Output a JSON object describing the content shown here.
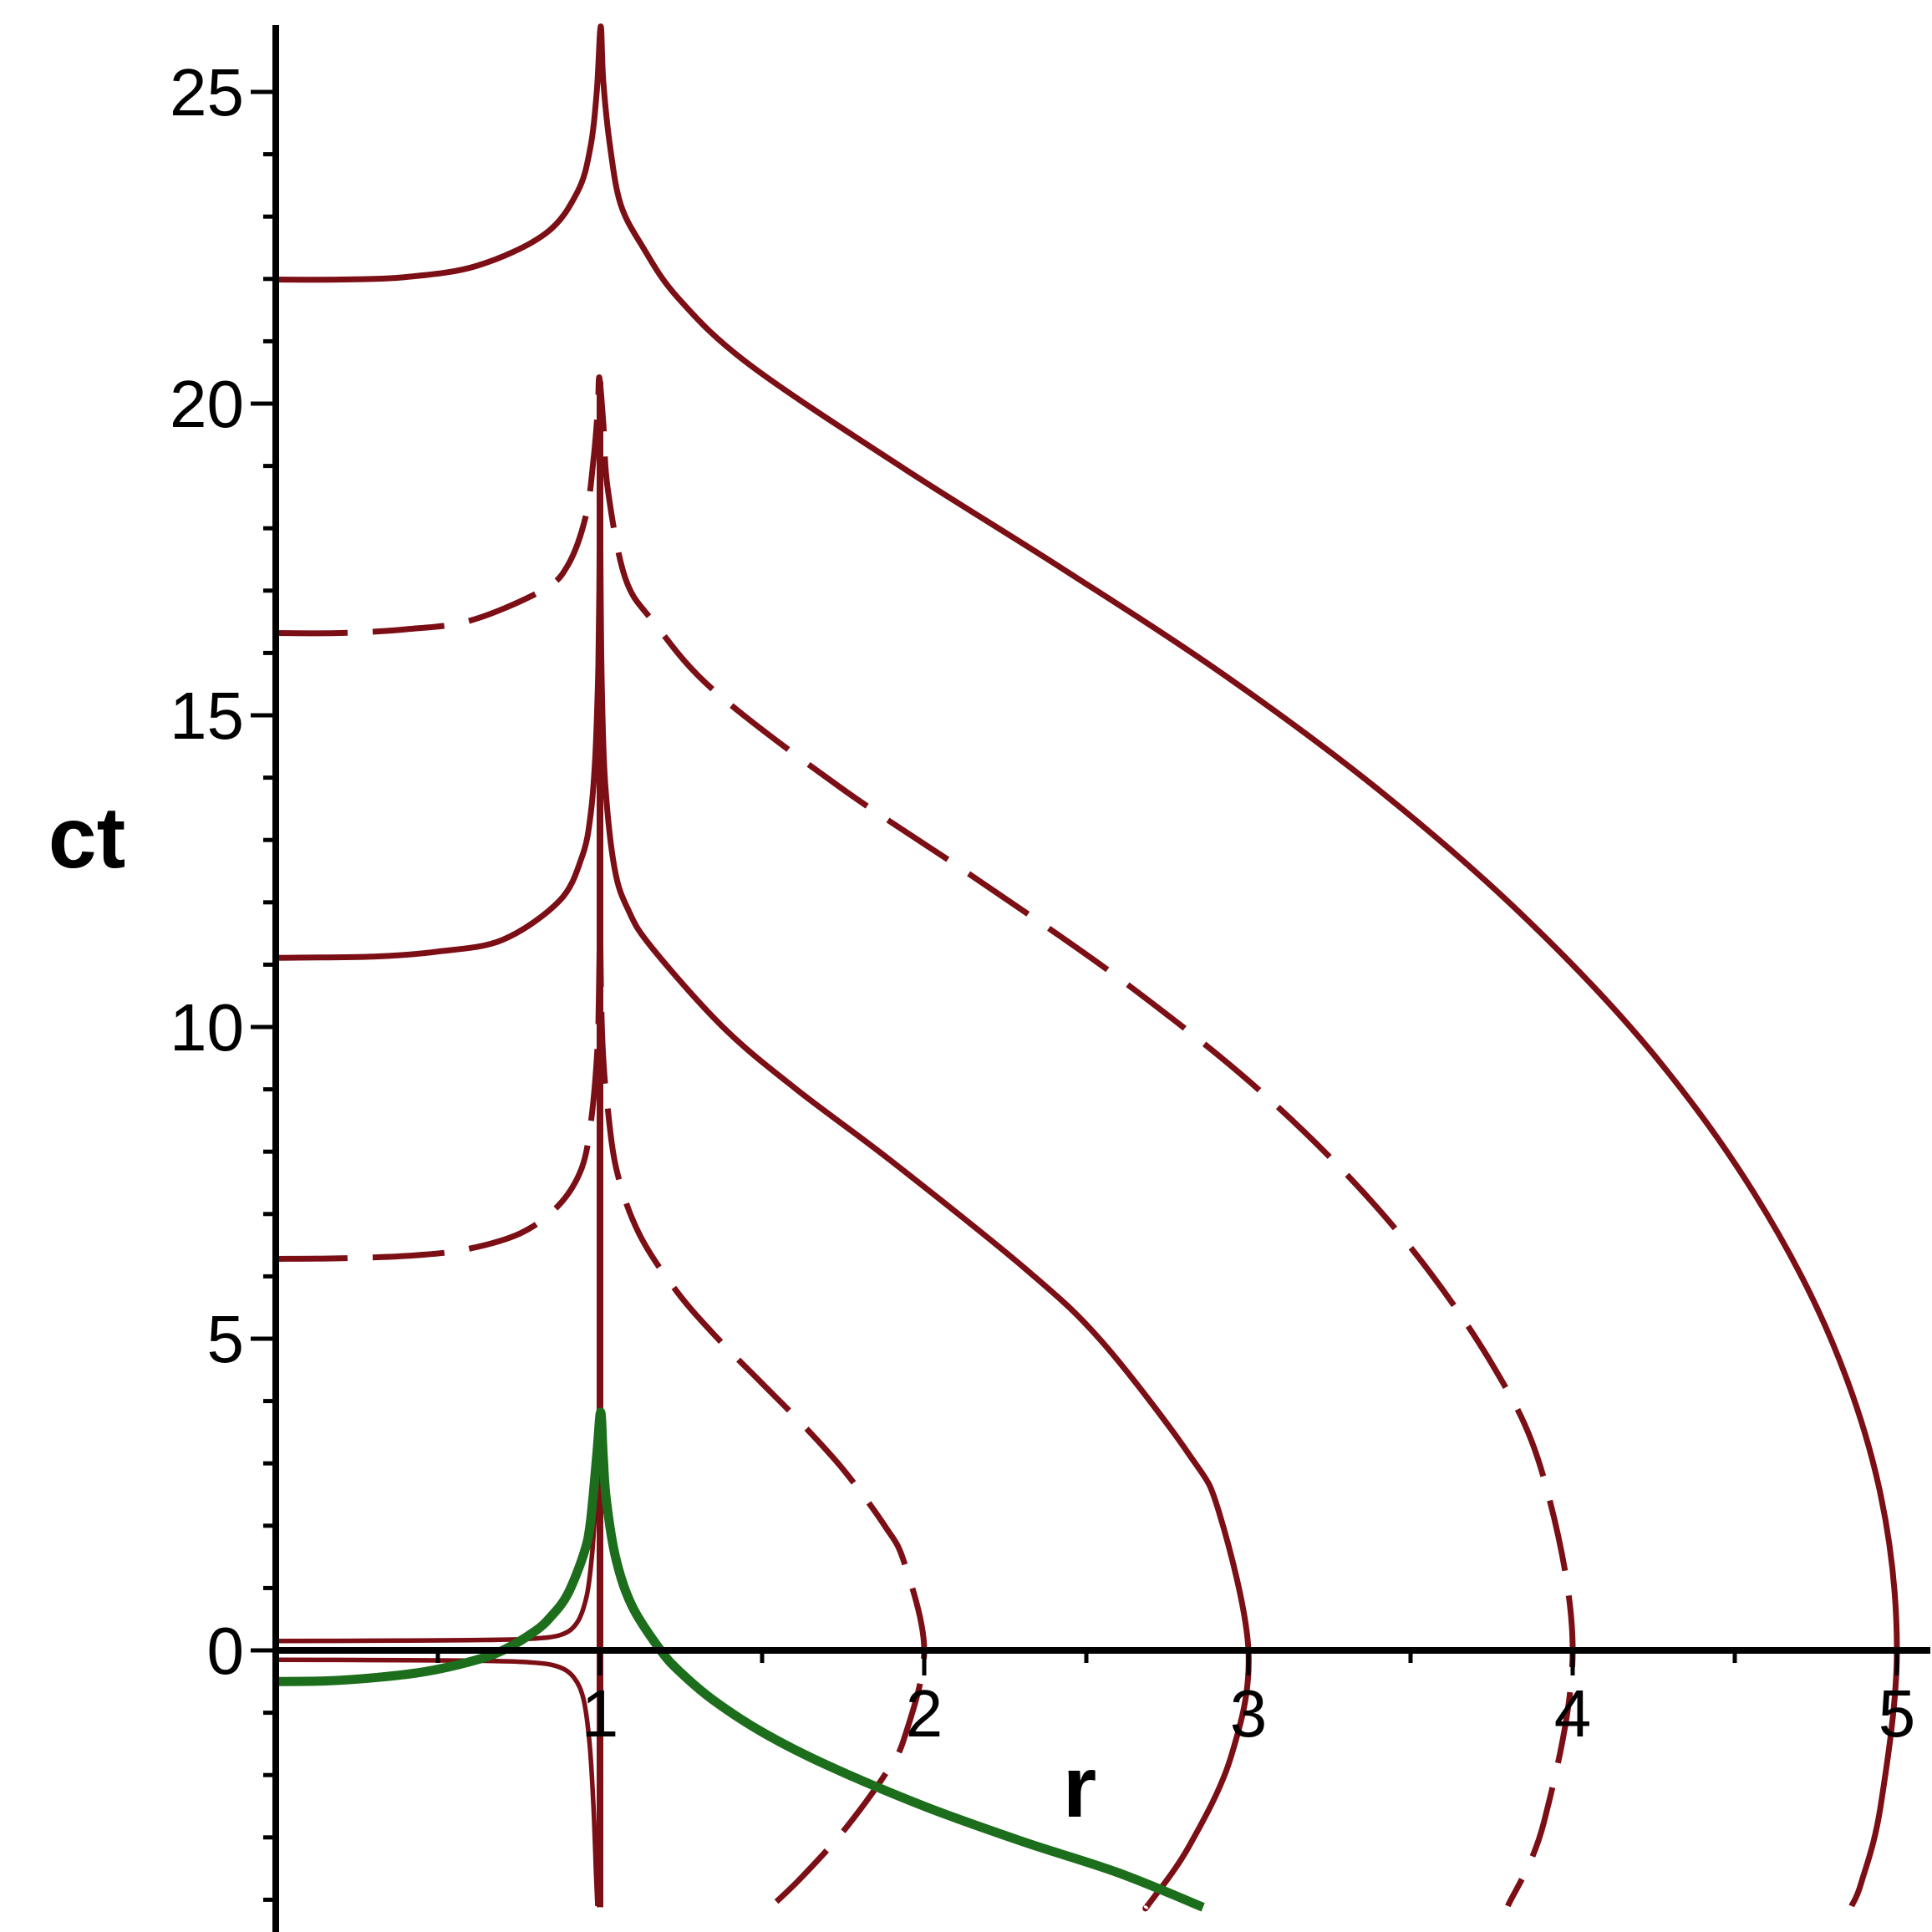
{
  "figure": {
    "background": "#ffffff"
  },
  "chart_data": {
    "type": "line",
    "xlabel": "r",
    "ylabel": "ct",
    "x_range_view": [
      0,
      5.11
    ],
    "y_range_view": [
      -4.52,
      26.2
    ],
    "grid": false,
    "legend": "none",
    "axis_color": "#000000",
    "x_ticks": [
      {
        "v": 1,
        "label": "1"
      },
      {
        "v": 2,
        "label": "2"
      },
      {
        "v": 3,
        "label": "3"
      },
      {
        "v": 4,
        "label": "4"
      },
      {
        "v": 5,
        "label": "5"
      }
    ],
    "x_minor_ticks": [
      0.5,
      1.5,
      2.5,
      3.5,
      4.5
    ],
    "y_ticks": [
      {
        "v": 0,
        "label": "0"
      },
      {
        "v": 5,
        "label": "5"
      },
      {
        "v": 10,
        "label": "10"
      },
      {
        "v": 15,
        "label": "15"
      },
      {
        "v": 20,
        "label": "20"
      },
      {
        "v": 25,
        "label": "25"
      }
    ],
    "y_minor_ticks": [
      -4,
      -3,
      -2,
      -1,
      1,
      2,
      3,
      4,
      6,
      7,
      8,
      9,
      11,
      12,
      13,
      14,
      16,
      17,
      18,
      19,
      21,
      22,
      23,
      24
    ],
    "colors": {
      "particle": "#7C0E15",
      "photon": "#1C6E1C"
    },
    "dash_pattern": "86 30",
    "series": [
      {
        "name": "particle-infall-r0-5",
        "color": "#7C0E15",
        "dash": "solid",
        "width": 7,
        "points": [
          [
            0,
            21.99
          ],
          [
            0.2,
            21.99
          ],
          [
            0.4,
            22.03
          ],
          [
            0.62,
            22.21
          ],
          [
            0.83,
            22.72
          ],
          [
            0.93,
            23.39
          ],
          [
            0.97,
            24.1
          ],
          [
            0.99,
            25.0
          ],
          [
            1.002,
            26.05
          ],
          [
            1.01,
            25.18
          ],
          [
            1.03,
            24.17
          ],
          [
            1.063,
            23.21
          ],
          [
            1.13,
            22.53
          ],
          [
            1.24,
            21.7
          ],
          [
            1.46,
            20.63
          ],
          [
            1.94,
            18.95
          ],
          [
            2.43,
            17.34
          ],
          [
            2.93,
            15.63
          ],
          [
            3.41,
            13.77
          ],
          [
            3.85,
            11.77
          ],
          [
            4.24,
            9.62
          ],
          [
            4.56,
            7.33
          ],
          [
            4.8,
            4.95
          ],
          [
            4.95,
            2.49
          ],
          [
            5,
            0
          ],
          [
            4.95,
            -2.49
          ],
          [
            4.89,
            -3.73
          ],
          [
            4.86,
            -4.1
          ]
        ]
      },
      {
        "name": "particle-infall-r0-4",
        "color": "#7C0E15",
        "dash": "dashed",
        "width": 7,
        "points": [
          [
            0,
            16.32
          ],
          [
            0.2,
            16.32
          ],
          [
            0.4,
            16.38
          ],
          [
            0.6,
            16.52
          ],
          [
            0.82,
            17.0
          ],
          [
            0.9,
            17.4
          ],
          [
            0.956,
            18.19
          ],
          [
            0.98,
            19.1
          ],
          [
            0.993,
            19.9
          ],
          [
            0.998,
            20.42
          ],
          [
            1.01,
            19.7
          ],
          [
            1.024,
            18.63
          ],
          [
            1.078,
            17.2
          ],
          [
            1.168,
            16.48
          ],
          [
            1.353,
            15.39
          ],
          [
            1.742,
            13.84
          ],
          [
            2.14,
            12.45
          ],
          [
            2.63,
            10.67
          ],
          [
            3.08,
            8.77
          ],
          [
            3.46,
            6.72
          ],
          [
            3.755,
            4.56
          ],
          [
            3.911,
            2.76
          ],
          [
            4,
            0
          ],
          [
            3.911,
            -2.76
          ],
          [
            3.8,
            -4.1
          ]
        ]
      },
      {
        "name": "particle-infall-r0-3",
        "color": "#7C0E15",
        "dash": "solid",
        "width": 7,
        "points": [
          [
            0,
            11.11
          ],
          [
            0.3,
            11.13
          ],
          [
            0.5,
            11.21
          ],
          [
            0.7,
            11.4
          ],
          [
            0.876,
            12.03
          ],
          [
            0.945,
            12.74
          ],
          [
            0.971,
            13.4
          ],
          [
            0.985,
            14.3
          ],
          [
            0.994,
            15.6
          ],
          [
            0.998,
            17.0
          ],
          [
            0.9995,
            18.7
          ],
          [
            1.0,
            20.35
          ],
          [
            1.0005,
            18.7
          ],
          [
            1.002,
            17.0
          ],
          [
            1.006,
            15.4
          ],
          [
            1.016,
            13.91
          ],
          [
            1.045,
            12.54
          ],
          [
            1.087,
            11.88
          ],
          [
            1.159,
            11.28
          ],
          [
            1.381,
            9.99
          ],
          [
            1.606,
            9.0
          ],
          [
            1.901,
            7.84
          ],
          [
            2.31,
            6.13
          ],
          [
            2.545,
            4.97
          ],
          [
            2.816,
            3.15
          ],
          [
            2.909,
            2.22
          ],
          [
            3,
            0
          ],
          [
            2.946,
            -1.71
          ],
          [
            2.816,
            -3.15
          ],
          [
            2.694,
            -4.06
          ],
          [
            2.686,
            -4.1
          ]
        ]
      },
      {
        "name": "particle-infall-r0-2",
        "color": "#7C0E15",
        "dash": "dashed",
        "width": 7,
        "points": [
          [
            0,
            6.28
          ],
          [
            0.2,
            6.29
          ],
          [
            0.41,
            6.33
          ],
          [
            0.584,
            6.43
          ],
          [
            0.754,
            6.69
          ],
          [
            0.871,
            7.13
          ],
          [
            0.941,
            7.7
          ],
          [
            0.971,
            8.43
          ],
          [
            0.991,
            9.56
          ],
          [
            0.997,
            10.6
          ],
          [
            1.0,
            11.7
          ],
          [
            1.003,
            10.6
          ],
          [
            1.009,
            9.6
          ],
          [
            1.021,
            8.84
          ],
          [
            1.051,
            7.71
          ],
          [
            1.12,
            6.69
          ],
          [
            1.238,
            5.75
          ],
          [
            1.362,
            5.01
          ],
          [
            1.489,
            4.34
          ],
          [
            1.622,
            3.64
          ],
          [
            1.752,
            2.89
          ],
          [
            1.878,
            2.0
          ],
          [
            1.939,
            1.4
          ],
          [
            2,
            0
          ],
          [
            1.939,
            -1.4
          ],
          [
            1.878,
            -2.0
          ],
          [
            1.752,
            -2.89
          ],
          [
            1.622,
            -3.64
          ],
          [
            1.53,
            -4.1
          ]
        ]
      },
      {
        "name": "horizon-asymptote-r1",
        "color": "#7C0E15",
        "dash": "solid",
        "width": 8,
        "points": [
          [
            1,
            20.35
          ],
          [
            1,
            -4.12
          ]
        ]
      },
      {
        "name": "horizon-hugger-upper",
        "color": "#7C0E15",
        "dash": "solid",
        "width": 5.5,
        "points": [
          [
            0,
            0.15
          ],
          [
            0.3,
            0.155
          ],
          [
            0.6,
            0.165
          ],
          [
            0.78,
            0.185
          ],
          [
            0.88,
            0.25
          ],
          [
            0.93,
            0.45
          ],
          [
            0.958,
            0.85
          ],
          [
            0.972,
            1.35
          ],
          [
            0.982,
            2.0
          ],
          [
            0.988,
            2.8
          ]
        ]
      },
      {
        "name": "horizon-hugger-lower",
        "color": "#7C0E15",
        "dash": "solid",
        "width": 5.5,
        "points": [
          [
            0,
            -0.15
          ],
          [
            0.3,
            -0.155
          ],
          [
            0.6,
            -0.165
          ],
          [
            0.78,
            -0.19
          ],
          [
            0.87,
            -0.26
          ],
          [
            0.92,
            -0.44
          ],
          [
            0.95,
            -0.8
          ],
          [
            0.968,
            -1.5
          ],
          [
            0.98,
            -2.5
          ],
          [
            0.988,
            -3.6
          ],
          [
            0.992,
            -4.1
          ]
        ]
      },
      {
        "name": "photon-ingoing",
        "color": "#1C6E1C",
        "dash": "solid",
        "width": 11,
        "points": [
          [
            0,
            -0.5
          ],
          [
            0.15,
            -0.49
          ],
          [
            0.3,
            -0.44
          ],
          [
            0.45,
            -0.35
          ],
          [
            0.6,
            -0.18
          ],
          [
            0.7,
            0.0
          ],
          [
            0.8,
            0.31
          ],
          [
            0.85,
            0.55
          ],
          [
            0.9,
            0.9
          ],
          [
            0.95,
            1.55
          ],
          [
            0.97,
            2.04
          ],
          [
            0.99,
            3.12
          ],
          [
            1.002,
            3.82
          ],
          [
            1.01,
            3.1
          ],
          [
            1.02,
            2.39
          ],
          [
            1.05,
            1.45
          ],
          [
            1.1,
            0.7
          ],
          [
            1.187,
            0
          ],
          [
            1.25,
            -0.36
          ],
          [
            1.35,
            -0.8
          ],
          [
            1.5,
            -1.31
          ],
          [
            1.7,
            -1.84
          ],
          [
            2.0,
            -2.5
          ],
          [
            2.3,
            -3.06
          ],
          [
            2.6,
            -3.57
          ],
          [
            2.86,
            -4.12
          ]
        ]
      }
    ]
  }
}
